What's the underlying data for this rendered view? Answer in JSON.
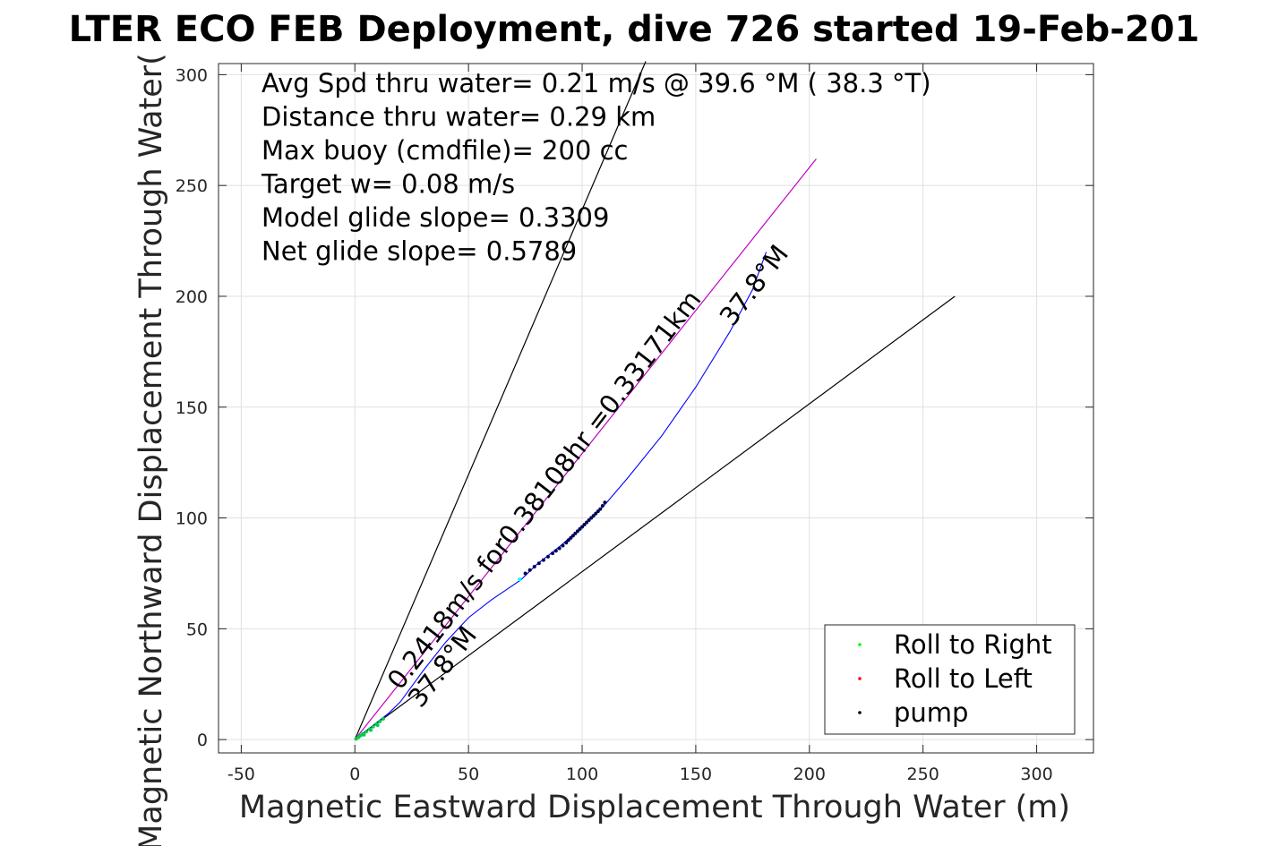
{
  "chart_data": {
    "type": "line",
    "title": "LTER ECO FEB Deployment, dive 726 started 19-Feb-201",
    "xlabel": "Magnetic Eastward Displacement Through Water (m)",
    "ylabel": "Magnetic Northward Displacement Through Water(",
    "xlim": [
      -60,
      325
    ],
    "ylim": [
      -6,
      305
    ],
    "xticks": [
      -50,
      0,
      50,
      100,
      150,
      200,
      250,
      300
    ],
    "yticks": [
      0,
      50,
      100,
      150,
      200,
      250,
      300
    ],
    "xtick_labels": [
      "-50",
      "0",
      "50",
      "100",
      "150",
      "200",
      "250",
      "300"
    ],
    "ytick_labels": [
      "0",
      "50",
      "100",
      "150",
      "200",
      "250",
      "300"
    ],
    "grid": true,
    "info_lines": [
      "Avg Spd thru water=  0.21 m/s @  39.6 °M ( 38.3 °T)",
      "Distance thru water=  0.29 km",
      "Max buoy (cmdfile)= 200 cc",
      "Target w= 0.08 m/s",
      "Model glide slope= 0.3309",
      "Net glide slope= 0.5789"
    ],
    "annotations": {
      "speed_label": "0.2418m/s for0.38108hr =0.33171km",
      "heading_label_lower": "37.8°M",
      "heading_label_upper": "37.8°M"
    },
    "reference_lines": [
      {
        "name": "",
        "color": "#000000",
        "x": [
          0,
          128
        ],
        "y": [
          0,
          306
        ]
      },
      {
        "name": "",
        "color": "#000000",
        "x": [
          0,
          264
        ],
        "y": [
          0,
          200
        ]
      },
      {
        "name": "",
        "color": "#c000c0",
        "x": [
          0,
          203
        ],
        "y": [
          0,
          262
        ]
      }
    ],
    "track": {
      "color": "#0000ff",
      "x": [
        0,
        5,
        10,
        15,
        20,
        25,
        30,
        40,
        50,
        60,
        73,
        80,
        90,
        100,
        110,
        120,
        135,
        150,
        165,
        175,
        181
      ],
      "y": [
        0,
        4,
        8,
        12,
        17,
        24,
        31,
        44,
        55,
        63,
        72,
        79,
        87,
        96,
        106,
        118,
        137,
        159,
        184,
        203,
        220
      ]
    },
    "legend": {
      "placement": "bottom-right",
      "entries": [
        {
          "label": "Roll to Right",
          "color": "#00ff00"
        },
        {
          "label": "Roll to Left",
          "color": "#ff0000"
        },
        {
          "label": "pump",
          "color": "#000000"
        }
      ]
    },
    "series": [
      {
        "name": "Roll to Right",
        "color": "#00cc44",
        "x": [
          0.5,
          1.5,
          2.5,
          3.5,
          5,
          6.5,
          8,
          9.5,
          11,
          12.5,
          4,
          7,
          10
        ],
        "y": [
          0.3,
          1,
          1.8,
          2.6,
          3.6,
          4.7,
          5.8,
          7,
          8.2,
          9.4,
          2.2,
          4.3,
          6.5
        ]
      },
      {
        "name": "pump",
        "color": "#000055",
        "x": [
          75,
          77,
          79,
          81,
          83,
          85,
          87,
          88.5,
          90,
          91.5,
          93,
          94,
          95,
          96,
          97,
          98,
          99,
          100,
          101,
          102,
          103,
          104,
          105,
          106,
          107,
          108,
          109,
          110
        ],
        "y": [
          75,
          76.5,
          78,
          79.5,
          81,
          82.5,
          84,
          85.2,
          86.3,
          87.5,
          88.8,
          90,
          91,
          92,
          93,
          94,
          95,
          96,
          97,
          98,
          99,
          100,
          101,
          102,
          103,
          104,
          105.5,
          107
        ]
      },
      {
        "name": "cyan",
        "color": "#00ffff",
        "x": [
          72.5
        ],
        "y": [
          72.3
        ]
      }
    ]
  }
}
